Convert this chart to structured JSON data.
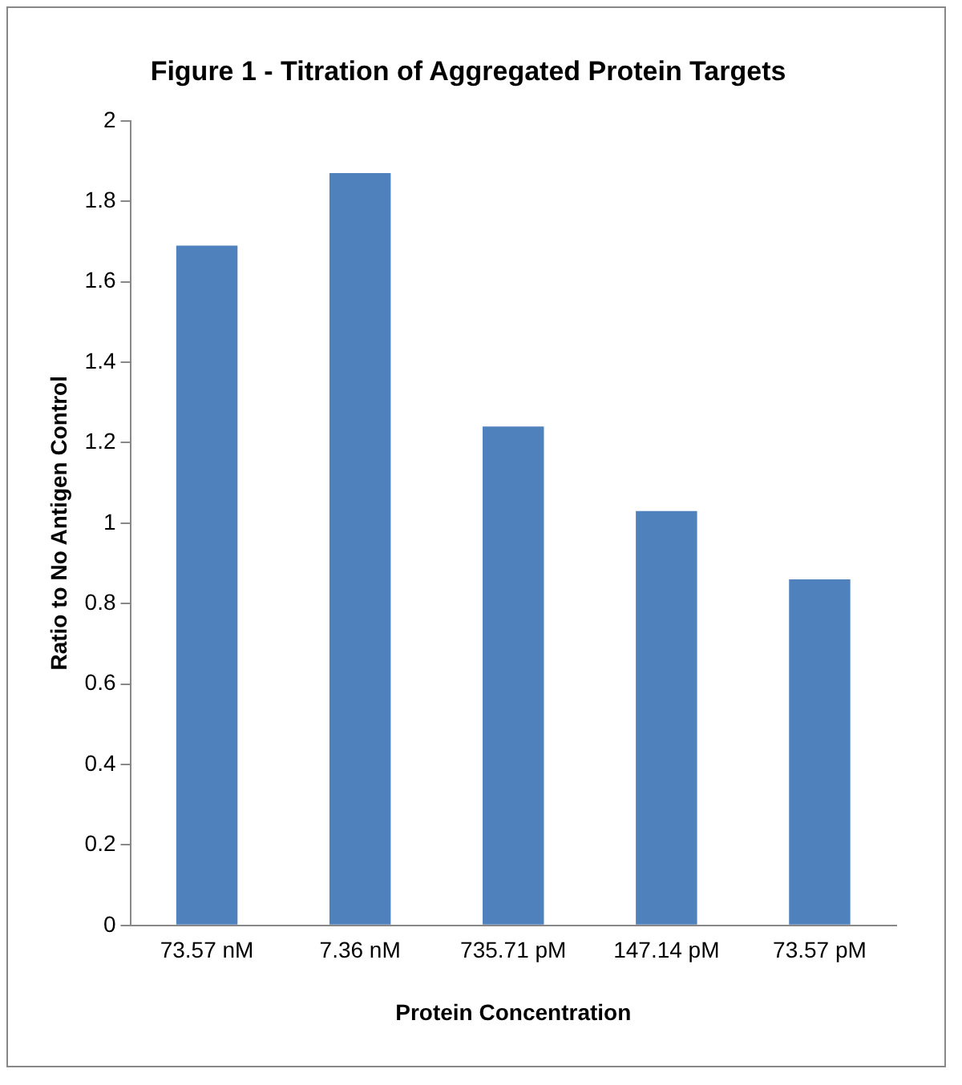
{
  "chart_data": {
    "type": "bar",
    "title": "Figure 1 - Titration of Aggregated Protein Targets",
    "xlabel": "Protein Concentration",
    "ylabel": "Ratio to No Antigen Control",
    "categories": [
      "73.57 nM",
      "7.36 nM",
      "735.71 pM",
      "147.14 pM",
      "73.57 pM"
    ],
    "values": [
      1.69,
      1.87,
      1.24,
      1.03,
      0.86
    ],
    "color": "#4f81bd",
    "ylim": [
      0,
      2
    ],
    "yticks": [
      0,
      0.2,
      0.4,
      0.6,
      0.8,
      1,
      1.2,
      1.4,
      1.6,
      1.8,
      2
    ],
    "grid": false,
    "legend": false
  }
}
